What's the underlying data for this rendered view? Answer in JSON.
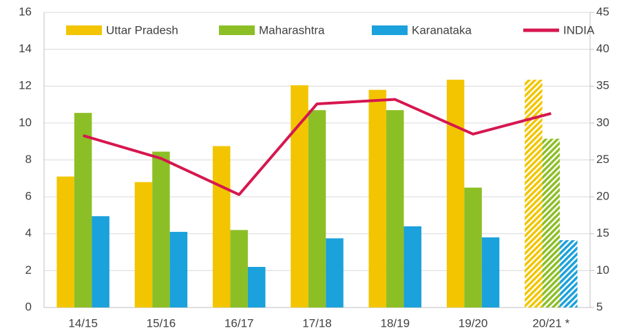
{
  "chart_data": {
    "type": "bar",
    "categories": [
      "14/15",
      "15/16",
      "16/17",
      "17/18",
      "18/19",
      "19/20",
      "20/21 *"
    ],
    "hatched": [
      false,
      false,
      false,
      false,
      false,
      false,
      true
    ],
    "series": [
      {
        "name": "Uttar Pradesh",
        "color": "#f2c500",
        "values": [
          7.1,
          6.8,
          8.75,
          12.05,
          11.8,
          12.35,
          12.35
        ]
      },
      {
        "name": "Maharashtra",
        "color": "#8cbf26",
        "values": [
          10.55,
          8.45,
          4.2,
          10.7,
          10.7,
          6.5,
          9.15
        ]
      },
      {
        "name": "Karanataka",
        "color": "#1ba1db",
        "values": [
          4.95,
          4.1,
          2.2,
          3.75,
          4.4,
          3.8,
          3.65
        ]
      },
      {
        "name": "INDIA",
        "color": "#d6174f",
        "type": "line",
        "axis": "y2",
        "values": [
          28.3,
          25.2,
          20.3,
          32.6,
          33.2,
          28.5,
          31.3
        ]
      }
    ],
    "ylim": [
      0,
      16
    ],
    "yticks": [
      0,
      2,
      4,
      6,
      8,
      10,
      12,
      14,
      16
    ],
    "y2lim": [
      5,
      45
    ],
    "y2ticks": [
      5,
      10,
      15,
      20,
      25,
      30,
      35,
      40,
      45
    ],
    "grid": true,
    "legend": "top"
  }
}
